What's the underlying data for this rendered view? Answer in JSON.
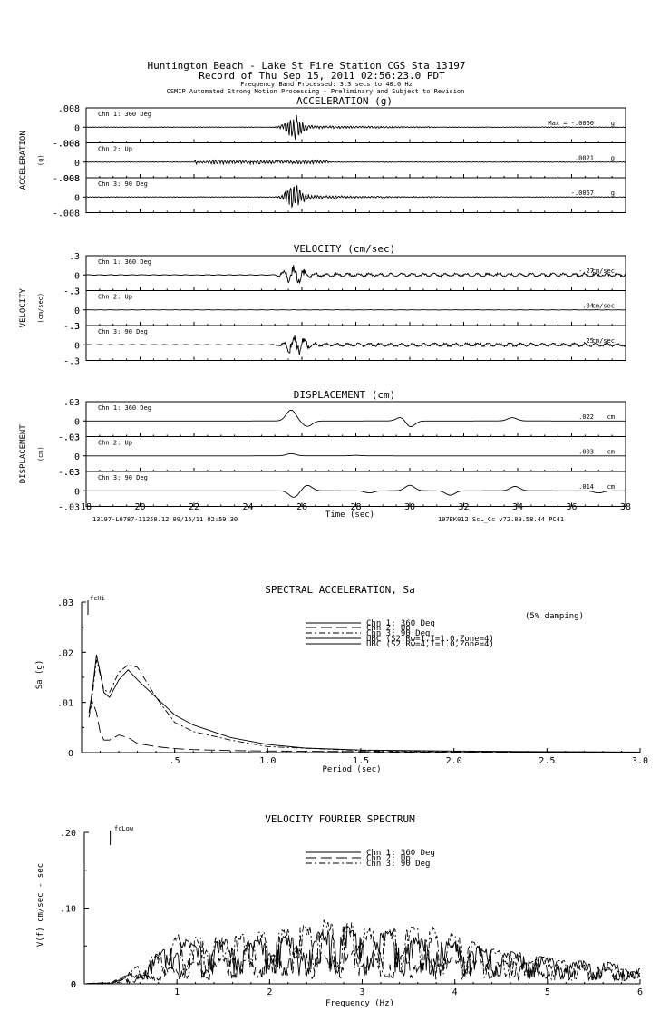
{
  "header": {
    "line1": "Huntington Beach - Lake St Fire Station      CGS Sta 13197",
    "line2": "Record of Thu Sep 15, 2011 02:56:23.0 PDT",
    "line3": "Frequency Band Processed: 3.3 secs to 40.0 Hz",
    "line4": "CSMIP Automated Strong Motion Processing - Preliminary and Subject to Revision"
  },
  "time_series": {
    "x_label": "Time (sec)",
    "x_ticks": [
      "18",
      "20",
      "22",
      "24",
      "26",
      "28",
      "30",
      "32",
      "34",
      "36",
      "38"
    ],
    "footer_left": "13197-L0787-11258.12 09/15/11 02:59:30",
    "footer_right": "197BK012   ScL_Cc   v72.89.58.44   PC41",
    "panels": [
      {
        "title": "ACCELERATION (g)",
        "side_label": "ACCELERATION",
        "unit_label": "(g)",
        "tick_top": ".008",
        "tick_zero": "0",
        "tick_bottom": "-.008",
        "channels": [
          {
            "name": "Chn 1: 360 Deg",
            "max_label": "Max =  -.0060",
            "unit": "g"
          },
          {
            "name": "Chn 2: Up",
            "max_label": ".0021",
            "unit": "g"
          },
          {
            "name": "Chn 3: 90 Deg",
            "max_label": "-.0067",
            "unit": "g"
          }
        ]
      },
      {
        "title": "VELOCITY (cm/sec)",
        "side_label": "VELOCITY",
        "unit_label": "(cm/sec)",
        "tick_top": ".3",
        "tick_zero": "0",
        "tick_bottom": "-.3",
        "channels": [
          {
            "name": "Chn 1: 360 Deg",
            "max_label": "-.27",
            "unit": "cm/sec"
          },
          {
            "name": "Chn 2: Up",
            "max_label": ".04",
            "unit": "cm/sec"
          },
          {
            "name": "Chn 3: 90 Deg",
            "max_label": ".25",
            "unit": "cm/sec"
          }
        ]
      },
      {
        "title": "DISPLACEMENT (cm)",
        "side_label": "DISPLACEMENT",
        "unit_label": "(cm)",
        "tick_top": ".03",
        "tick_zero": "0",
        "tick_bottom": "-.03",
        "channels": [
          {
            "name": "Chn 1: 360 Deg",
            "max_label": ".022",
            "unit": "cm"
          },
          {
            "name": "Chn 2: Up",
            "max_label": ".003",
            "unit": "cm"
          },
          {
            "name": "Chn 3: 90 Deg",
            "max_label": ".014",
            "unit": "cm"
          }
        ]
      }
    ]
  },
  "chart_data": [
    {
      "type": "line",
      "title": "SPECTRAL ACCELERATION, Sa",
      "xlabel": "Period (sec)",
      "ylabel": "Sa (g)",
      "xlim": [
        0,
        3.0
      ],
      "ylim": [
        0,
        0.03
      ],
      "x_ticks": [
        ".5",
        "1.0",
        "1.5",
        "2.0",
        "2.5",
        "3.0"
      ],
      "y_ticks": [
        ".03",
        ".02",
        ".01",
        "0"
      ],
      "marker_label": "fcHi",
      "note": "(5% damping)",
      "legend": [
        "Chn 1: 360 Deg",
        "Chn 2: Up",
        "Chn 3: 90 Deg",
        "UBC (S2,Rw=1,I=1.0,Zone=4)",
        "UBC (S2,Rw=4,I=1.0,Zone=4)"
      ],
      "series": [
        {
          "name": "Chn 1: 360 Deg",
          "x": [
            0.04,
            0.06,
            0.08,
            0.1,
            0.12,
            0.15,
            0.2,
            0.25,
            0.3,
            0.4,
            0.5,
            0.6,
            0.8,
            1.0,
            1.2,
            1.5,
            2.0,
            2.5,
            3.0
          ],
          "y": [
            0.008,
            0.013,
            0.0195,
            0.016,
            0.012,
            0.011,
            0.0145,
            0.0165,
            0.0145,
            0.011,
            0.0075,
            0.0055,
            0.003,
            0.0016,
            0.0009,
            0.0005,
            0.0003,
            0.0002,
            0.0001
          ]
        },
        {
          "name": "Chn 2: Up",
          "x": [
            0.04,
            0.06,
            0.08,
            0.1,
            0.12,
            0.15,
            0.2,
            0.25,
            0.3,
            0.4,
            0.5,
            0.6,
            0.8,
            1.0,
            1.5,
            2.0,
            3.0
          ],
          "y": [
            0.008,
            0.01,
            0.008,
            0.004,
            0.0025,
            0.0025,
            0.0035,
            0.003,
            0.0018,
            0.0012,
            0.0008,
            0.0006,
            0.0004,
            0.0003,
            0.0002,
            0.0001,
            0.0001
          ]
        },
        {
          "name": "Chn 3: 90 Deg",
          "x": [
            0.04,
            0.06,
            0.08,
            0.1,
            0.12,
            0.15,
            0.2,
            0.25,
            0.3,
            0.35,
            0.4,
            0.5,
            0.6,
            0.8,
            1.0,
            1.5,
            2.0,
            3.0
          ],
          "y": [
            0.007,
            0.012,
            0.0185,
            0.0155,
            0.0125,
            0.012,
            0.016,
            0.0175,
            0.017,
            0.014,
            0.011,
            0.006,
            0.0042,
            0.0025,
            0.0012,
            0.0004,
            0.0002,
            0.0001
          ]
        }
      ]
    },
    {
      "type": "line",
      "title": "VELOCITY FOURIER SPECTRUM",
      "xlabel": "Frequency (Hz)",
      "ylabel": "V(f)   cm/sec - sec",
      "xlim": [
        0,
        6
      ],
      "ylim": [
        0,
        0.2
      ],
      "x_ticks": [
        "0",
        "1",
        "2",
        "3",
        "4",
        "5",
        "6"
      ],
      "y_ticks": [
        ".20",
        ".10",
        "0"
      ],
      "marker_label": "fcLow",
      "legend": [
        "Chn 1: 360 Deg",
        "Chn 2: Up",
        "Chn 3: 90 Deg"
      ],
      "series": [
        {
          "name": "Chn 1: 360 Deg",
          "x": [
            0,
            0.3,
            0.6,
            0.9,
            1.0,
            1.2,
            1.5,
            1.8,
            2.0,
            2.3,
            2.6,
            2.8,
            3.0,
            3.3,
            3.6,
            4.0,
            4.4,
            4.8,
            5.2,
            5.6,
            6.0
          ],
          "y": [
            0,
            0.002,
            0.02,
            0.05,
            0.07,
            0.05,
            0.06,
            0.055,
            0.065,
            0.06,
            0.07,
            0.08,
            0.06,
            0.07,
            0.06,
            0.055,
            0.045,
            0.04,
            0.03,
            0.03,
            0.02
          ]
        },
        {
          "name": "Chn 2: Up",
          "x": [
            0,
            0.3,
            0.6,
            0.9,
            1.2,
            1.5,
            1.8,
            2.1,
            2.4,
            2.7,
            3.0,
            3.3,
            3.6,
            4.0,
            4.4,
            4.8,
            5.2,
            5.6,
            6.0
          ],
          "y": [
            0,
            0.003,
            0.01,
            0.02,
            0.03,
            0.035,
            0.03,
            0.04,
            0.045,
            0.04,
            0.045,
            0.04,
            0.035,
            0.035,
            0.03,
            0.03,
            0.025,
            0.02,
            0.015
          ]
        },
        {
          "name": "Chn 3: 90 Deg",
          "x": [
            0,
            0.3,
            0.6,
            0.9,
            1.0,
            1.3,
            1.6,
            2.0,
            2.3,
            2.6,
            2.9,
            3.2,
            3.5,
            3.8,
            4.0,
            4.3,
            4.6,
            5.0,
            5.4,
            5.8,
            6.0
          ],
          "y": [
            0,
            0.002,
            0.025,
            0.05,
            0.065,
            0.06,
            0.065,
            0.07,
            0.075,
            0.085,
            0.08,
            0.07,
            0.075,
            0.075,
            0.065,
            0.05,
            0.04,
            0.035,
            0.025,
            0.02,
            0.015
          ]
        }
      ]
    }
  ]
}
